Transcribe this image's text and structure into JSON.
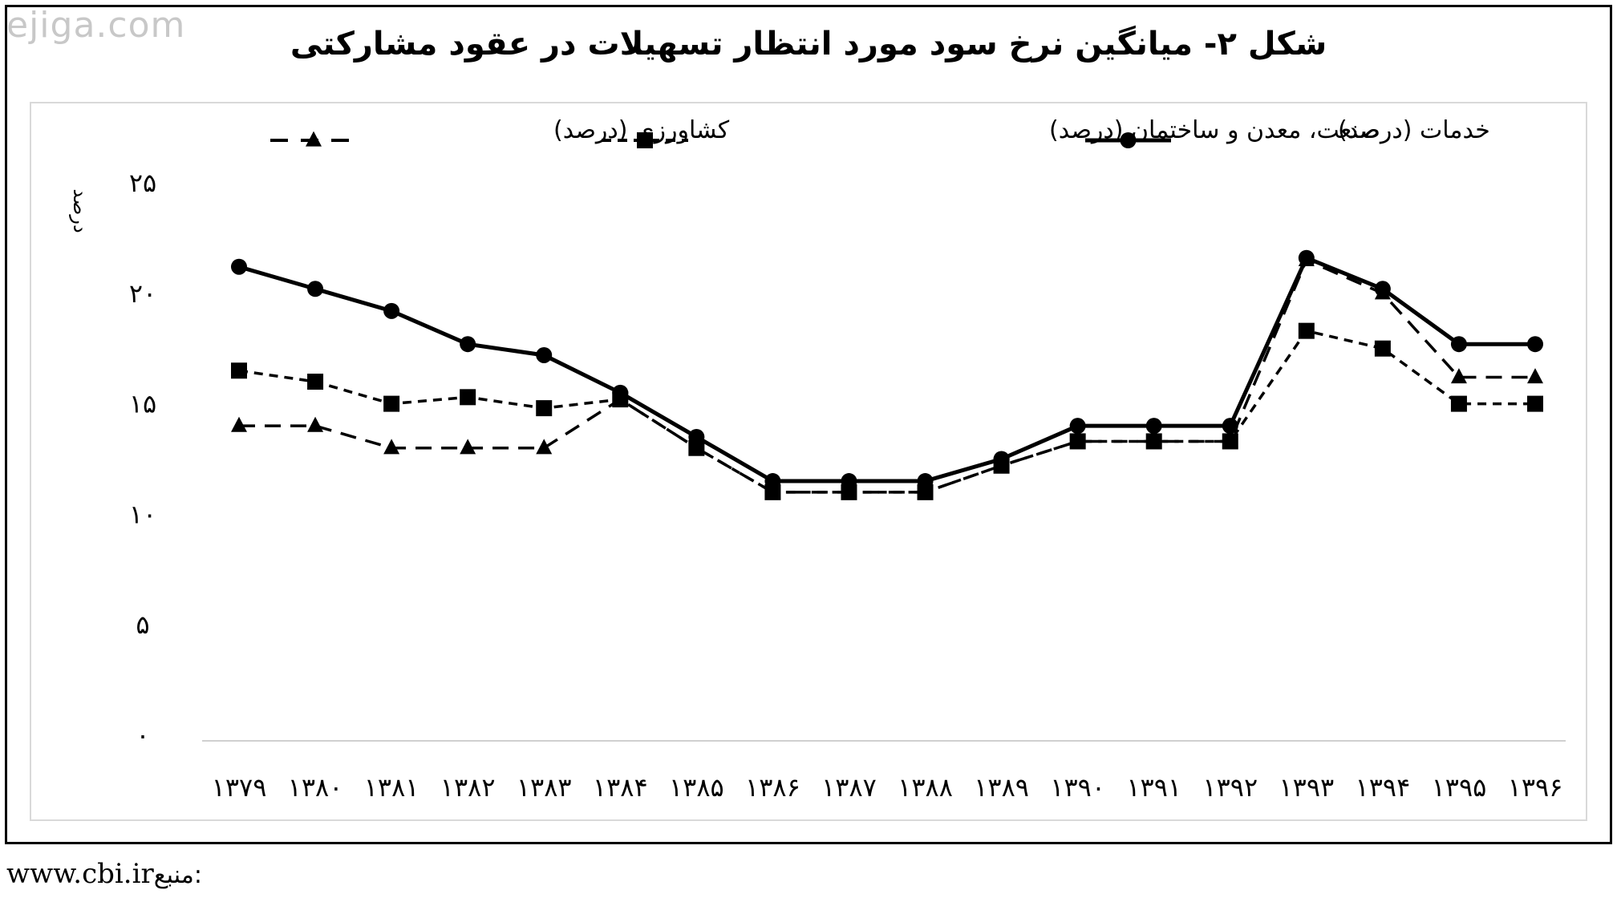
{
  "watermark": "ejiga.com",
  "source": {
    "label": "منبع:",
    "url": "www.cbi.ir"
  },
  "chart_data": {
    "type": "line",
    "title": "شکل ۲- میانگین نرخ سود مورد انتظار تسهیلات در عقود مشارکتی",
    "ylabel": "درصد",
    "xlabel": "",
    "ylim": [
      0,
      25
    ],
    "yticks": [
      0,
      5,
      10,
      15,
      20,
      25
    ],
    "ytick_labels": [
      "۰",
      "۵",
      "۱۰",
      "۱۵",
      "۲۰",
      "۲۵"
    ],
    "grid": false,
    "legend_position": "top",
    "x": [
      "۱۳۷۹",
      "۱۳۸۰",
      "۱۳۸۱",
      "۱۳۸۲",
      "۱۳۸۳",
      "۱۳۸۴",
      "۱۳۸۵",
      "۱۳۸۶",
      "۱۳۸۷",
      "۱۳۸۸",
      "۱۳۸۹",
      "۱۳۹۰",
      "۱۳۹۱",
      "۱۳۹۲",
      "۱۳۹۳",
      "۱۳۹۴",
      "۱۳۹۵",
      "۱۳۹۶"
    ],
    "series": [
      {
        "name": "خدمات (درصد)",
        "style": "solid",
        "marker": "circle",
        "color": "#000000",
        "values": [
          21.2,
          20.2,
          19.2,
          17.7,
          17.2,
          15.5,
          13.5,
          11.5,
          11.5,
          11.5,
          12.5,
          14.0,
          14.0,
          14.0,
          21.6,
          20.2,
          17.7,
          17.7
        ]
      },
      {
        "name": "صنعت، معدن و ساختمان (درصد)",
        "style": "dashed",
        "marker": "square",
        "color": "#000000",
        "values": [
          16.5,
          16.0,
          15.0,
          15.3,
          14.8,
          15.2,
          13.0,
          11.0,
          11.0,
          11.0,
          12.2,
          13.3,
          13.3,
          13.3,
          18.3,
          17.5,
          15.0,
          15.0
        ]
      },
      {
        "name": "کشاورزی (درصد)",
        "style": "dashed",
        "marker": "triangle",
        "color": "#000000",
        "values": [
          14.0,
          14.0,
          13.0,
          13.0,
          13.0,
          15.2,
          13.0,
          11.0,
          11.0,
          11.0,
          12.2,
          13.3,
          13.3,
          13.3,
          21.5,
          20.0,
          16.2,
          16.2
        ]
      }
    ]
  }
}
